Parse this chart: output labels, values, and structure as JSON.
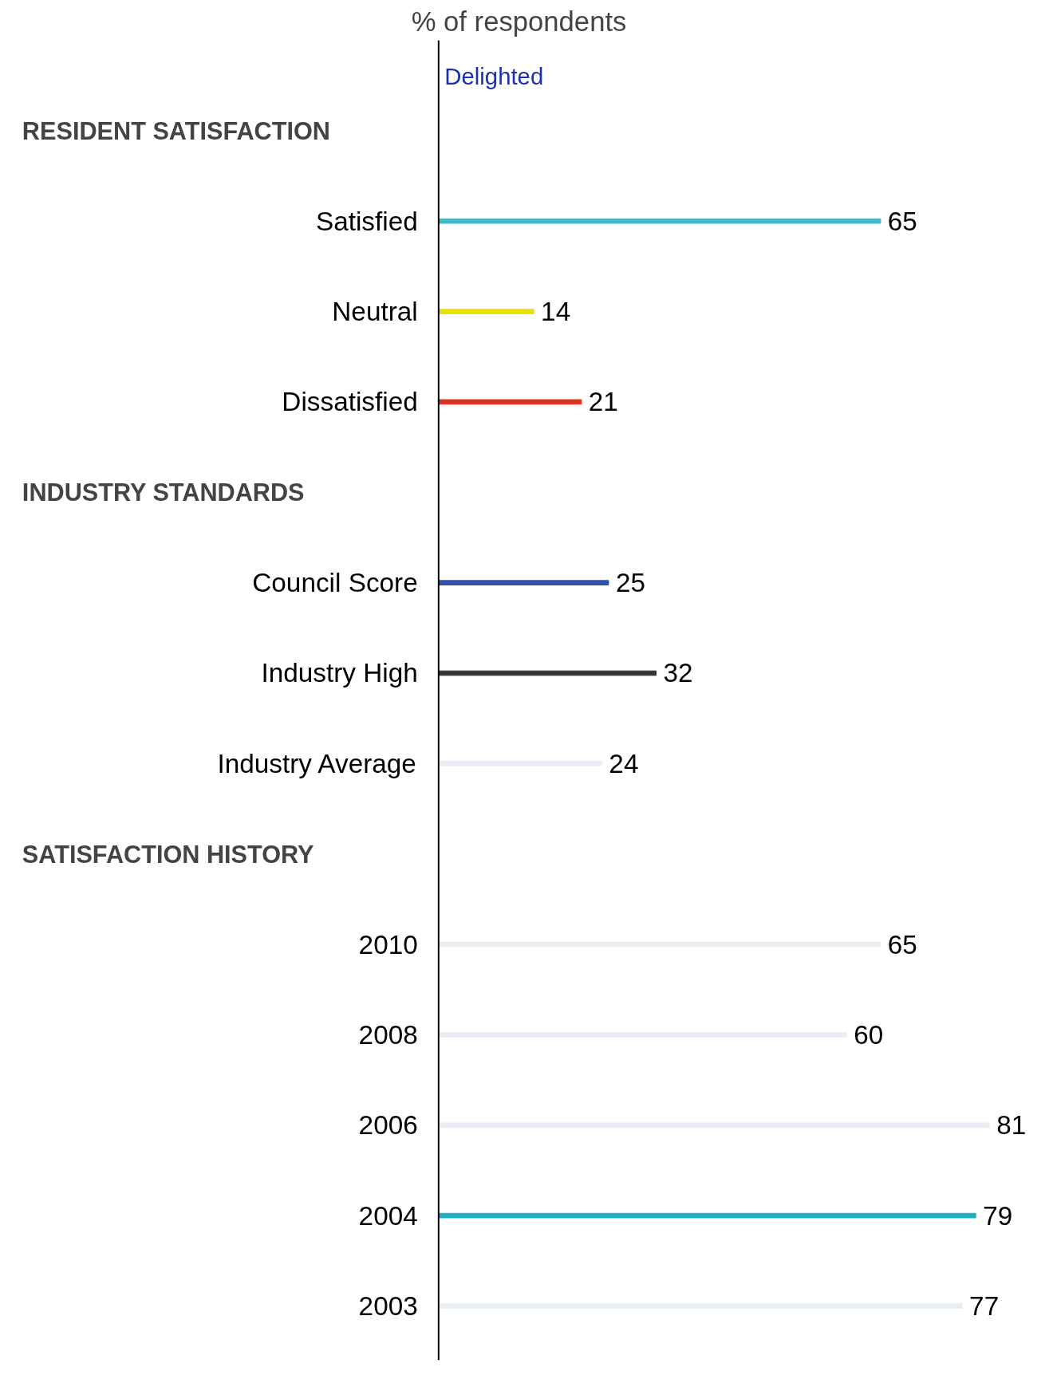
{
  "chart_data": {
    "type": "bar",
    "orientation": "horizontal",
    "title": "% of respondents",
    "categories": [
      null,
      "Satisfied",
      "Neutral",
      "Dissatisfied",
      null,
      "Council Score",
      "Industry High",
      "Industry Average",
      null,
      "2010",
      "2008",
      "2006",
      "2004",
      "2003"
    ],
    "values": [
      null,
      65,
      14,
      21,
      null,
      25,
      32,
      24,
      null,
      65,
      60,
      81,
      79,
      77
    ],
    "colors": [
      "#ffffff",
      "#40b8c8",
      "#e8e000",
      "#e03020",
      "#ffffff",
      "#3050b0",
      "#333333",
      "#e8eef4",
      "#ffffff",
      "#e8eef4",
      "#e8eef4",
      "#e8eef4",
      "#20b0c0",
      "#e8eef4"
    ],
    "data_labels": true,
    "annotations": [
      "RESIDENT SATISFACTION",
      "INDUSTRY STANDARDS",
      "SATISFACTION HISTORY",
      "Delighted"
    ]
  }
}
